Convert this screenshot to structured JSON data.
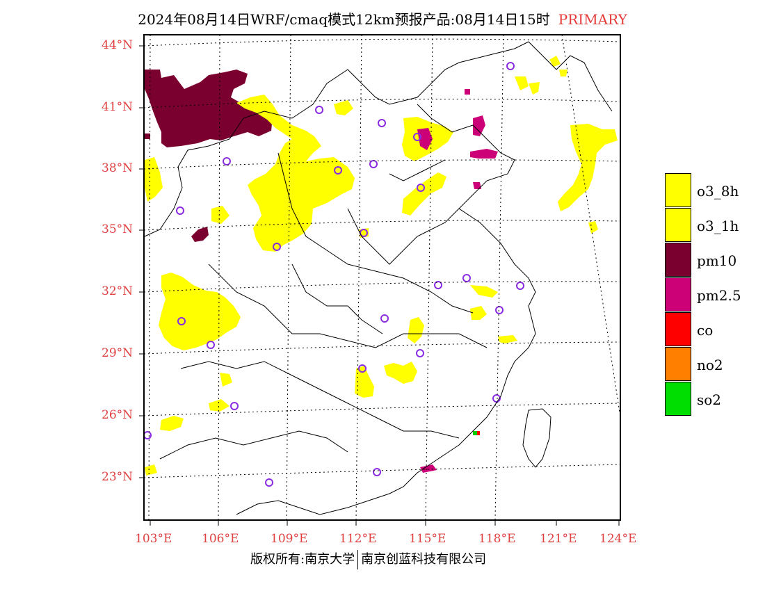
{
  "title": "2024年08月14日WRF/cmaq模式12km预报产品:08月14日15时",
  "title_tag": "PRIMARY",
  "lat_labels": [
    "44°N",
    "41°N",
    "38°N",
    "35°N",
    "32°N",
    "29°N",
    "26°N",
    "23°N"
  ],
  "lon_labels": [
    "103°E",
    "106°E",
    "109°E",
    "112°E",
    "115°E",
    "118°E",
    "121°E",
    "124°E"
  ],
  "legend": [
    {
      "label": "o3_8h",
      "color": "#ffff00"
    },
    {
      "label": "o3_1h",
      "color": "#ffff00"
    },
    {
      "label": "pm10",
      "color": "#7a0030"
    },
    {
      "label": "pm2.5",
      "color": "#cc0077"
    },
    {
      "label": "co",
      "color": "#ff0000"
    },
    {
      "label": "no2",
      "color": "#ff8000"
    },
    {
      "label": "so2",
      "color": "#00dd00"
    }
  ],
  "footer_left": "版权所有:南京大学",
  "footer_right": "南京创蓝科技有限公司",
  "colors": {
    "label_red": "#e04040",
    "station_circle": "#8a2be2"
  }
}
